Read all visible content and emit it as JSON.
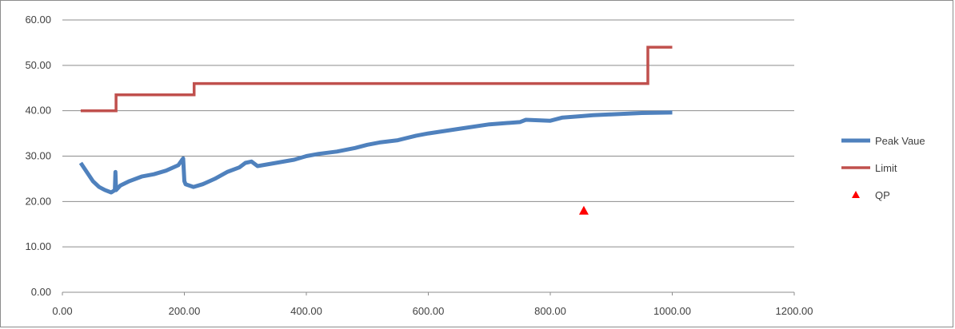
{
  "chart_data": {
    "type": "line",
    "title": "",
    "xlabel": "",
    "ylabel": "",
    "xlim": [
      0,
      1200
    ],
    "ylim": [
      0,
      60
    ],
    "x_ticks": [
      "0.00",
      "200.00",
      "400.00",
      "600.00",
      "800.00",
      "1000.00",
      "1200.00"
    ],
    "y_ticks": [
      "0.00",
      "10.00",
      "20.00",
      "30.00",
      "40.00",
      "50.00",
      "60.00"
    ],
    "grid": "horizontal",
    "legend_position": "right",
    "series": [
      {
        "name": "Peak Vaue",
        "kind": "line",
        "color": "#4f81bd",
        "x": [
          30,
          40,
          50,
          60,
          70,
          80,
          86,
          87,
          88,
          95,
          110,
          130,
          150,
          170,
          190,
          198,
          200,
          202,
          215,
          230,
          250,
          270,
          290,
          300,
          310,
          320,
          350,
          380,
          400,
          420,
          450,
          480,
          500,
          520,
          550,
          580,
          600,
          650,
          700,
          750,
          760,
          800,
          820,
          850,
          870,
          900,
          950,
          1000
        ],
        "y": [
          28.5,
          26.5,
          24.5,
          23.2,
          22.5,
          22.0,
          22.5,
          26.5,
          22.5,
          23.5,
          24.5,
          25.5,
          26.0,
          26.8,
          28.0,
          29.5,
          24.5,
          23.8,
          23.2,
          23.8,
          25.0,
          26.5,
          27.5,
          28.5,
          28.8,
          27.8,
          28.5,
          29.2,
          30.0,
          30.5,
          31.0,
          31.8,
          32.5,
          33.0,
          33.5,
          34.5,
          35.0,
          36.0,
          37.0,
          37.5,
          38.0,
          37.8,
          38.5,
          38.8,
          39.0,
          39.2,
          39.5,
          39.6
        ]
      },
      {
        "name": "Limit",
        "kind": "step",
        "color": "#c0504d",
        "x": [
          30,
          88,
          88,
          216,
          216,
          960,
          960,
          1000
        ],
        "y": [
          40,
          40,
          43.5,
          43.5,
          46,
          46,
          54,
          54
        ]
      },
      {
        "name": "QP",
        "kind": "scatter",
        "color": "#ff0000",
        "marker": "triangle",
        "x": [
          855
        ],
        "y": [
          18
        ]
      }
    ]
  }
}
